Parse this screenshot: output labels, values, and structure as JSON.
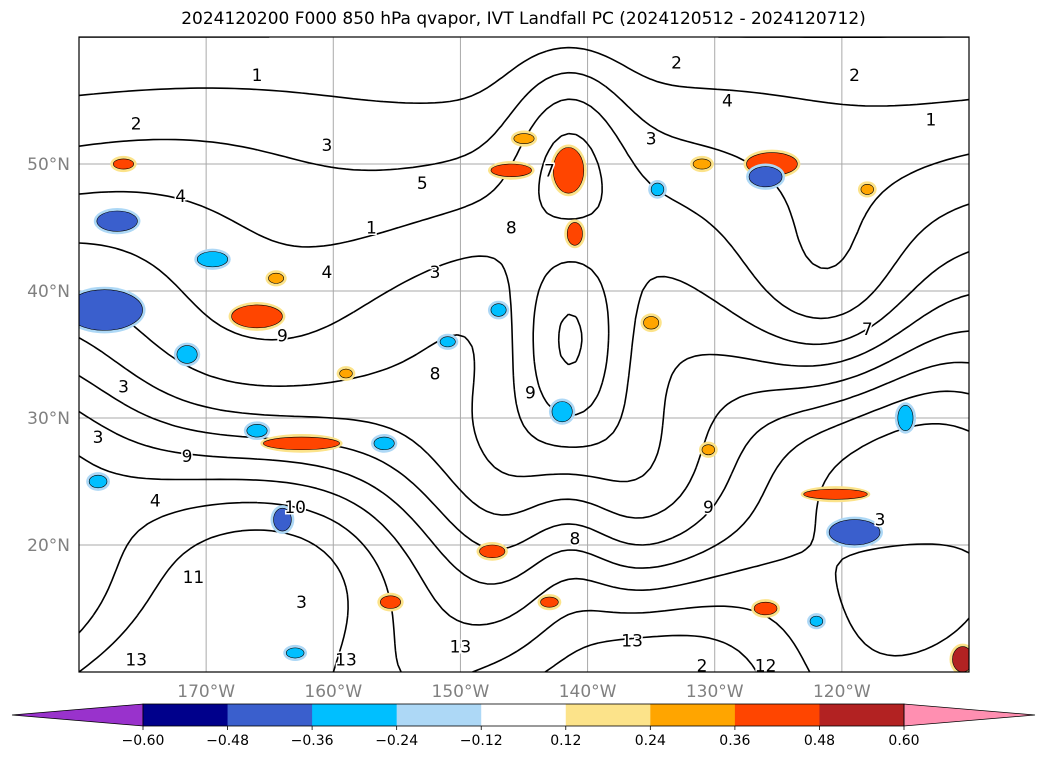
{
  "chart_data": {
    "type": "heatmap",
    "title": "2024120200 F000 850 hPa qvapor, IVT Landfall PC (2024120512 - 2024120712)",
    "lon_range": [
      -180,
      -110
    ],
    "lat_range": [
      10,
      60
    ],
    "x_ticks": [
      {
        "lon": -170,
        "label": "170°W"
      },
      {
        "lon": -160,
        "label": "160°W"
      },
      {
        "lon": -150,
        "label": "150°W"
      },
      {
        "lon": -140,
        "label": "140°W"
      },
      {
        "lon": -130,
        "label": "130°W"
      },
      {
        "lon": -120,
        "label": "120°W"
      }
    ],
    "y_ticks": [
      {
        "lat": 50,
        "label": "50°N"
      },
      {
        "lat": 40,
        "label": "40°N"
      },
      {
        "lat": 30,
        "label": "30°N"
      },
      {
        "lat": 20,
        "label": "20°N"
      }
    ],
    "grid": true,
    "colorbar": {
      "orientation": "horizontal",
      "extend": "both",
      "levels": [
        -0.6,
        -0.48,
        -0.36,
        -0.24,
        -0.12,
        0.12,
        0.24,
        0.36,
        0.48,
        0.6
      ],
      "tick_labels": [
        "−0.60",
        "−0.48",
        "−0.36",
        "−0.24",
        "−0.12",
        "0.12",
        "0.24",
        "0.36",
        "0.48",
        "0.60"
      ],
      "colors": [
        "#9932cc",
        "#00008b",
        "#3a5fcd",
        "#00bfff",
        "#add8f6",
        "#ffffff",
        "#fce38a",
        "#ffa500",
        "#ff4500",
        "#b22222",
        "#ff8fb1"
      ]
    },
    "contour_labels": [
      {
        "lon": -166,
        "lat": 57,
        "text": "1"
      },
      {
        "lon": -175.5,
        "lat": 53.2,
        "text": "2"
      },
      {
        "lon": -160.5,
        "lat": 51.5,
        "text": "3"
      },
      {
        "lon": -172,
        "lat": 47.5,
        "text": "4"
      },
      {
        "lon": -153,
        "lat": 48.5,
        "text": "5"
      },
      {
        "lon": -157,
        "lat": 45,
        "text": "1"
      },
      {
        "lon": -160.5,
        "lat": 41.5,
        "text": "4"
      },
      {
        "lon": -164,
        "lat": 36.5,
        "text": "9"
      },
      {
        "lon": -176.5,
        "lat": 32.5,
        "text": "3"
      },
      {
        "lon": -178.5,
        "lat": 28.5,
        "text": "3"
      },
      {
        "lon": -171.5,
        "lat": 27,
        "text": "9"
      },
      {
        "lon": -174,
        "lat": 23.5,
        "text": "4"
      },
      {
        "lon": -163,
        "lat": 23,
        "text": "10"
      },
      {
        "lon": -171,
        "lat": 17.5,
        "text": "11"
      },
      {
        "lon": -162.5,
        "lat": 15.5,
        "text": "3"
      },
      {
        "lon": -175.5,
        "lat": 11,
        "text": "13"
      },
      {
        "lon": -159,
        "lat": 11,
        "text": "13"
      },
      {
        "lon": -150,
        "lat": 12,
        "text": "13"
      },
      {
        "lon": -152,
        "lat": 33.5,
        "text": "8"
      },
      {
        "lon": -152,
        "lat": 41.5,
        "text": "3"
      },
      {
        "lon": -143,
        "lat": 49.5,
        "text": "7"
      },
      {
        "lon": -146,
        "lat": 45,
        "text": "8"
      },
      {
        "lon": -135,
        "lat": 52,
        "text": "3"
      },
      {
        "lon": -144.5,
        "lat": 32,
        "text": "9"
      },
      {
        "lon": -130.5,
        "lat": 23,
        "text": "9"
      },
      {
        "lon": -141,
        "lat": 20.5,
        "text": "8"
      },
      {
        "lon": -133,
        "lat": 58,
        "text": "2"
      },
      {
        "lon": -129,
        "lat": 55,
        "text": "4"
      },
      {
        "lon": -119,
        "lat": 57,
        "text": "2"
      },
      {
        "lon": -113,
        "lat": 53.5,
        "text": "1"
      },
      {
        "lon": -136.5,
        "lat": 12.5,
        "text": "13"
      },
      {
        "lon": -131,
        "lat": 10.5,
        "text": "2"
      },
      {
        "lon": -126,
        "lat": 10.5,
        "text": "12"
      },
      {
        "lon": -118,
        "lat": 37,
        "text": "7"
      },
      {
        "lon": -117,
        "lat": 22,
        "text": "3"
      }
    ],
    "pos_patches": [
      {
        "lon": -141.5,
        "lat": 49.5,
        "rx": 1.2,
        "ry": 1.8,
        "v": 0.42
      },
      {
        "lon": -146,
        "lat": 49.5,
        "rx": 1.6,
        "ry": 0.5,
        "v": 0.4
      },
      {
        "lon": -125.5,
        "lat": 50,
        "rx": 2.0,
        "ry": 0.9,
        "v": 0.45
      },
      {
        "lon": -166,
        "lat": 38,
        "rx": 2.0,
        "ry": 0.9,
        "v": 0.42
      },
      {
        "lon": -176.5,
        "lat": 50,
        "rx": 0.8,
        "ry": 0.4,
        "v": 0.4
      },
      {
        "lon": -145,
        "lat": 52,
        "rx": 0.8,
        "ry": 0.4,
        "v": 0.35
      },
      {
        "lon": -141,
        "lat": 44.5,
        "rx": 0.6,
        "ry": 0.9,
        "v": 0.36
      },
      {
        "lon": -162.5,
        "lat": 28,
        "rx": 3.0,
        "ry": 0.5,
        "v": 0.45
      },
      {
        "lon": -120.5,
        "lat": 24,
        "rx": 2.5,
        "ry": 0.4,
        "v": 0.4
      },
      {
        "lon": -126,
        "lat": 15,
        "rx": 0.9,
        "ry": 0.5,
        "v": 0.45
      },
      {
        "lon": -110.5,
        "lat": 11,
        "rx": 0.8,
        "ry": 1.0,
        "v": 0.5
      },
      {
        "lon": -147.5,
        "lat": 19.5,
        "rx": 1.0,
        "ry": 0.5,
        "v": 0.38
      },
      {
        "lon": -155.5,
        "lat": 15.5,
        "rx": 0.8,
        "ry": 0.5,
        "v": 0.38
      },
      {
        "lon": -135,
        "lat": 37.5,
        "rx": 0.6,
        "ry": 0.5,
        "v": 0.32
      },
      {
        "lon": -164.5,
        "lat": 41,
        "rx": 0.6,
        "ry": 0.4,
        "v": 0.35
      },
      {
        "lon": -130.5,
        "lat": 27.5,
        "rx": 0.5,
        "ry": 0.4,
        "v": 0.3
      },
      {
        "lon": -131,
        "lat": 50,
        "rx": 0.7,
        "ry": 0.4,
        "v": 0.28
      },
      {
        "lon": -118,
        "lat": 48,
        "rx": 0.5,
        "ry": 0.4,
        "v": 0.3
      },
      {
        "lon": -159,
        "lat": 33.5,
        "rx": 0.5,
        "ry": 0.35,
        "v": 0.3
      },
      {
        "lon": -143,
        "lat": 15.5,
        "rx": 0.7,
        "ry": 0.4,
        "v": 0.38
      }
    ],
    "neg_patches": [
      {
        "lon": -178,
        "lat": 38.5,
        "rx": 3.0,
        "ry": 1.6,
        "v": -0.45
      },
      {
        "lon": -177,
        "lat": 45.5,
        "rx": 1.6,
        "ry": 0.8,
        "v": -0.45
      },
      {
        "lon": -119,
        "lat": 21,
        "rx": 2.0,
        "ry": 1.0,
        "v": -0.45
      },
      {
        "lon": -126,
        "lat": 49,
        "rx": 1.3,
        "ry": 0.8,
        "v": -0.42
      },
      {
        "lon": -142,
        "lat": 30.5,
        "rx": 0.8,
        "ry": 0.8,
        "v": -0.35
      },
      {
        "lon": -169.5,
        "lat": 42.5,
        "rx": 1.2,
        "ry": 0.6,
        "v": -0.35
      },
      {
        "lon": -171.5,
        "lat": 35,
        "rx": 0.8,
        "ry": 0.7,
        "v": -0.3
      },
      {
        "lon": -156,
        "lat": 28,
        "rx": 0.8,
        "ry": 0.5,
        "v": -0.35
      },
      {
        "lon": -164,
        "lat": 22,
        "rx": 0.7,
        "ry": 0.9,
        "v": -0.4
      },
      {
        "lon": -115,
        "lat": 30,
        "rx": 0.6,
        "ry": 1.0,
        "v": -0.35
      },
      {
        "lon": -122,
        "lat": 14,
        "rx": 0.5,
        "ry": 0.4,
        "v": -0.3
      },
      {
        "lon": -163,
        "lat": 11.5,
        "rx": 0.7,
        "ry": 0.4,
        "v": -0.3
      },
      {
        "lon": -134.5,
        "lat": 48,
        "rx": 0.5,
        "ry": 0.5,
        "v": -0.3
      },
      {
        "lon": -151,
        "lat": 36,
        "rx": 0.6,
        "ry": 0.4,
        "v": -0.25
      },
      {
        "lon": -147,
        "lat": 38.5,
        "rx": 0.6,
        "ry": 0.5,
        "v": -0.3
      },
      {
        "lon": -166,
        "lat": 29,
        "rx": 0.8,
        "ry": 0.5,
        "v": -0.3
      },
      {
        "lon": -178.5,
        "lat": 25,
        "rx": 0.7,
        "ry": 0.5,
        "v": -0.3
      }
    ]
  }
}
